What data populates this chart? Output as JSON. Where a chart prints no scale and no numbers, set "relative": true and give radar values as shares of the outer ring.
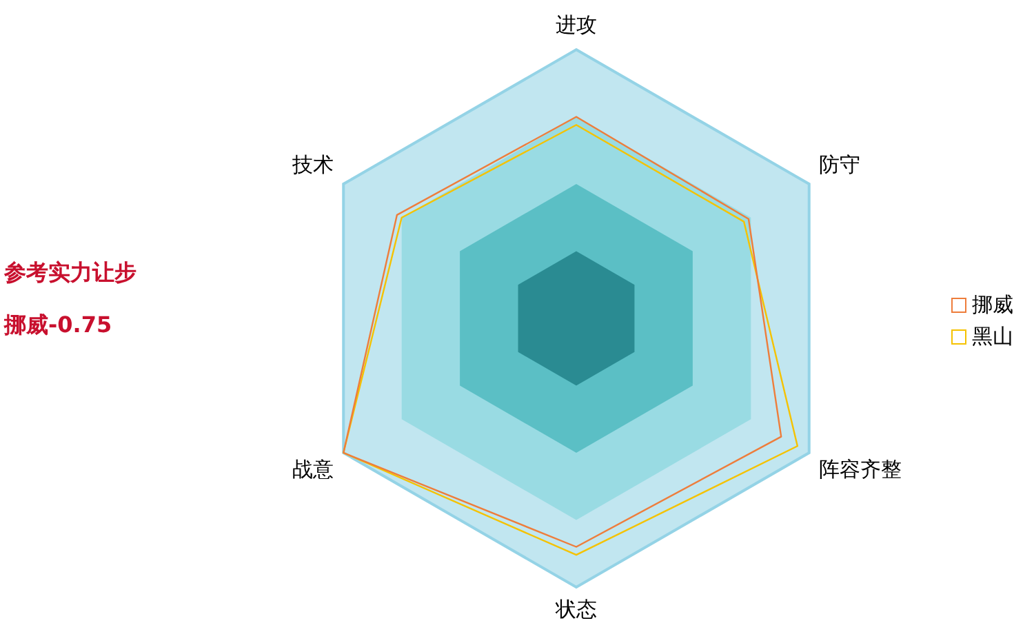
{
  "chart_data": {
    "type": "radar",
    "relative": true,
    "grid": true,
    "legend": "right",
    "marker": "none",
    "categories": [
      "进攻",
      "防守",
      "阵容齐整",
      "状态",
      "战意",
      "技术"
    ],
    "series": [
      {
        "name": "挪威",
        "color": "#ee7d3b",
        "values": [
          0.75,
          0.74,
          0.88,
          0.85,
          1.0,
          0.77
        ]
      },
      {
        "name": "黑山",
        "color": "#f5c200",
        "values": [
          0.72,
          0.72,
          0.95,
          0.88,
          1.0,
          0.75
        ]
      }
    ],
    "annotations": [
      "参考实力让步",
      "挪威-0.75"
    ]
  }
}
